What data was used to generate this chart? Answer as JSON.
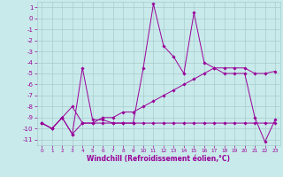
{
  "xlabel": "Windchill (Refroidissement éolien,°C)",
  "x": [
    0,
    1,
    2,
    3,
    4,
    5,
    6,
    7,
    8,
    9,
    10,
    11,
    12,
    13,
    14,
    15,
    16,
    17,
    18,
    19,
    20,
    21,
    22,
    23
  ],
  "line1": [
    -9.5,
    -10.0,
    -9.0,
    -10.5,
    -4.5,
    -9.2,
    -9.2,
    -9.5,
    -9.5,
    -9.5,
    -4.5,
    1.3,
    -2.5,
    -3.5,
    -5.0,
    0.5,
    -4.0,
    -4.5,
    -5.0,
    -5.0,
    -5.0,
    -9.0,
    -11.2,
    -9.2
  ],
  "line2": [
    -9.5,
    -10.0,
    -9.0,
    -10.5,
    -9.5,
    -9.5,
    -9.5,
    -9.5,
    -9.5,
    -9.5,
    -9.5,
    -9.5,
    -9.5,
    -9.5,
    -9.5,
    -9.5,
    -9.5,
    -9.5,
    -9.5,
    -9.5,
    -9.5,
    -9.5,
    -9.5,
    -9.5
  ],
  "line3": [
    -9.5,
    -10.0,
    -9.0,
    -8.0,
    -9.5,
    -9.5,
    -9.0,
    -9.0,
    -8.5,
    -8.5,
    -8.0,
    -7.5,
    -7.0,
    -6.5,
    -6.0,
    -5.5,
    -5.0,
    -4.5,
    -4.5,
    -4.5,
    -4.5,
    -5.0,
    -5.0,
    -4.8
  ],
  "line_color": "#990099",
  "bg_color": "#c8eaea",
  "grid_color": "#a8cccc",
  "ylim": [
    -11.5,
    1.5
  ],
  "xlim": [
    -0.5,
    23.5
  ],
  "yticks": [
    1,
    0,
    -1,
    -2,
    -3,
    -4,
    -5,
    -6,
    -7,
    -8,
    -9,
    -10,
    -11
  ],
  "xticks": [
    0,
    1,
    2,
    3,
    4,
    5,
    6,
    7,
    8,
    9,
    10,
    11,
    12,
    13,
    14,
    15,
    16,
    17,
    18,
    19,
    20,
    21,
    22,
    23
  ]
}
